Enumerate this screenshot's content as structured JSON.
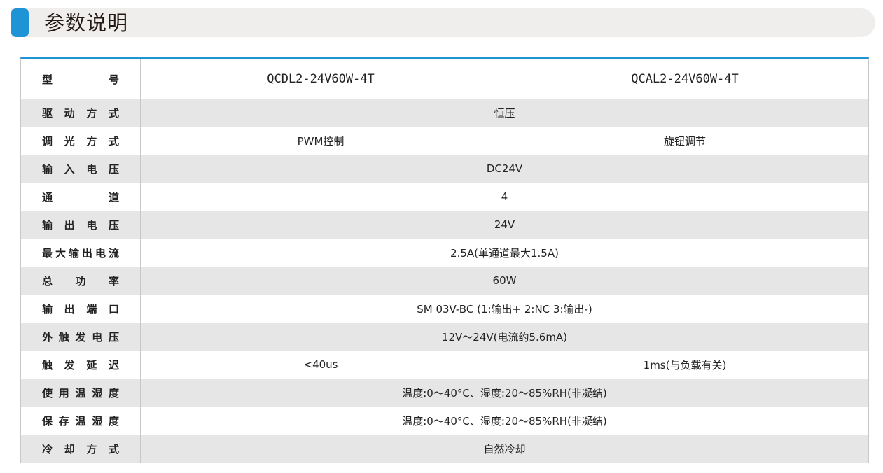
{
  "title": "参数说明",
  "colors": {
    "accent": "#1e94d6",
    "stripe": "#e6e6e6",
    "title_bg": "#efeeec"
  },
  "table": {
    "header": {
      "label": "型号",
      "models": [
        "QCDL2-24V60W-4T",
        "QCAL2-24V60W-4T"
      ]
    },
    "rows": [
      {
        "label": "驱动方式",
        "values": [
          "恒压"
        ]
      },
      {
        "label": "调光方式",
        "values": [
          "PWM控制",
          "旋钮调节"
        ]
      },
      {
        "label": "输入电压",
        "values": [
          "DC24V"
        ]
      },
      {
        "label": "通道",
        "values": [
          "4"
        ]
      },
      {
        "label": "输出电压",
        "values": [
          "24V"
        ]
      },
      {
        "label": "最大输出电流",
        "values": [
          "2.5A(单通道最大1.5A)"
        ]
      },
      {
        "label": "总功率",
        "values": [
          "60W"
        ]
      },
      {
        "label": "输出端口",
        "values": [
          "SM 03V-BC (1:输出+ 2:NC 3:输出-)"
        ]
      },
      {
        "label": "外触发电压",
        "values": [
          "12V～24V(电流约5.6mA)"
        ]
      },
      {
        "label": "触发延迟",
        "values": [
          "<40us",
          "1ms(与负载有关)"
        ]
      },
      {
        "label": "使用温湿度",
        "values": [
          "温度:0～40°C、湿度:20～85%RH(非凝结)"
        ]
      },
      {
        "label": "保存温湿度",
        "values": [
          "温度:0～40°C、湿度:20～85%RH(非凝结)"
        ]
      },
      {
        "label": "冷却方式",
        "values": [
          "自然冷却"
        ]
      }
    ]
  }
}
